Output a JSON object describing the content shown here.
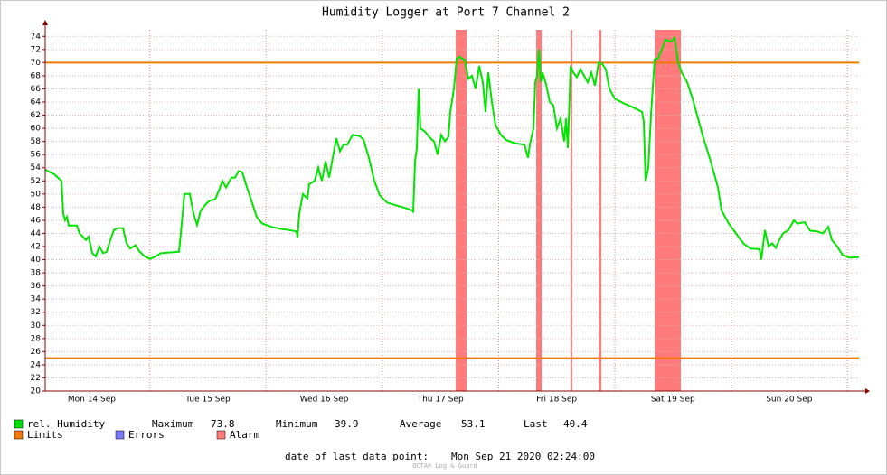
{
  "chart_data": {
    "type": "line",
    "title": "Humidity Logger at Port 7 Channel 2",
    "xlim": [
      0,
      168
    ],
    "ylim": [
      20,
      75
    ],
    "xticks": [
      {
        "value": 9.6,
        "label": "Mon 14 Sep"
      },
      {
        "value": 33.6,
        "label": "Tue 15 Sep"
      },
      {
        "value": 57.6,
        "label": "Wed 16 Sep"
      },
      {
        "value": 81.6,
        "label": "Thu 17 Sep"
      },
      {
        "value": 105.6,
        "label": "Fri 18 Sep"
      },
      {
        "value": 129.6,
        "label": "Sat 19 Sep"
      },
      {
        "value": 153.6,
        "label": "Sun 20 Sep"
      }
    ],
    "xgrid": [
      21.6,
      45.6,
      69.6,
      93.6,
      117.6,
      141.6,
      165.6
    ],
    "yticks": [
      20,
      22,
      24,
      26,
      28,
      30,
      32,
      34,
      36,
      38,
      40,
      42,
      44,
      46,
      48,
      50,
      52,
      54,
      56,
      58,
      60,
      62,
      64,
      66,
      68,
      70,
      72,
      74
    ],
    "grid": true,
    "x": [
      0,
      1.87,
      3.36,
      3.73,
      4.11,
      4.48,
      4.85,
      6.53,
      7.09,
      8.4,
      8.96,
      9.71,
      10.45,
      11.2,
      11.95,
      12.69,
      13.44,
      14.19,
      14.93,
      16.05,
      16.8,
      17.55,
      18.67,
      19.41,
      20.53,
      21.65,
      22.77,
      23.89,
      25.76,
      27.63,
      28,
      28.75,
      29.87,
      30.61,
      31.36,
      32.11,
      33.23,
      33.97,
      35.09,
      35.84,
      36.59,
      37.33,
      38.45,
      39.2,
      39.95,
      40.69,
      41.44,
      42.56,
      43.68,
      44.8,
      46.67,
      48.53,
      50.4,
      51.89,
      52.08,
      52.45,
      53.2,
      54.13,
      54.51,
      55.63,
      56.37,
      57.12,
      57.87,
      58.61,
      59.36,
      60.11,
      60.85,
      61.6,
      62.35,
      63.47,
      64.96,
      65.71,
      66.83,
      67.95,
      69.07,
      70.56,
      72.8,
      74.67,
      75.79,
      75.97,
      76.35,
      76.72,
      76.91,
      77.09,
      77.47,
      78.4,
      79.52,
      80.27,
      81.01,
      81.76,
      82.51,
      83.25,
      83.63,
      84.37,
      84.93,
      85.49,
      86.61,
      87.36,
      88.11,
      88.85,
      89.6,
      90.35,
      90.91,
      91.47,
      92.21,
      92.96,
      94.08,
      95.2,
      97.07,
      98.93,
      99.68,
      100.05,
      100.8,
      101.17,
      101.55,
      101.92,
      102.29,
      102.67,
      103.41,
      104.16,
      104.91,
      105.65,
      106.4,
      107.15,
      107.52,
      107.89,
      108.27,
      108.45,
      109.01,
      109.76,
      110.51,
      111.25,
      112,
      112.75,
      113.49,
      114.24,
      114.99,
      115.73,
      116.48,
      117.6,
      119.47,
      121.33,
      123.2,
      123.57,
      123.95,
      124.51,
      125.07,
      125.81,
      126.56,
      127.31,
      128.05,
      129.17,
      129.92,
      130.67,
      131.41,
      132.53,
      133.65,
      134.77,
      135.89,
      137.39,
      138.88,
      139.63,
      141.12,
      142.61,
      144.11,
      145.6,
      147.47,
      147.84,
      148.59,
      149.33,
      150.08,
      150.83,
      151.57,
      152.32,
      153.44,
      154.56,
      155.31,
      156.8,
      157.92,
      159.41,
      160.53,
      161.65,
      162.4,
      163.52,
      164.64,
      166.13,
      168
    ],
    "series": [
      {
        "name": "rel. Humidity",
        "color": "#00e400",
        "values": [
          53.7,
          53,
          52,
          47,
          46,
          46.5,
          45.2,
          45.2,
          44,
          43,
          43.5,
          41,
          40.5,
          42,
          41,
          41.2,
          43,
          44.5,
          44.8,
          44.8,
          42.5,
          41.7,
          42.2,
          41.3,
          40.5,
          40.1,
          40.5,
          41,
          41.1,
          41.2,
          44,
          50,
          50,
          47,
          45.3,
          47.5,
          48.5,
          49,
          49.2,
          50.5,
          52,
          51,
          52.5,
          52.5,
          53.5,
          53.3,
          51.5,
          49,
          46.5,
          45.5,
          45,
          44.7,
          44.5,
          44.3,
          43.3,
          47,
          50,
          49.3,
          51.5,
          52,
          54,
          52,
          55,
          52.5,
          55.5,
          58.5,
          56.5,
          57.5,
          57.5,
          59,
          58.8,
          58.3,
          55.5,
          52,
          49.8,
          48.7,
          48.2,
          47.8,
          47.5,
          47.2,
          55,
          57,
          61.5,
          66,
          60,
          59.5,
          58.5,
          58,
          56,
          59,
          58,
          58.7,
          62.5,
          66,
          70.6,
          70.9,
          70.4,
          67.5,
          68,
          66,
          69.5,
          67,
          62.5,
          68.5,
          64,
          60.5,
          59,
          58.2,
          57.7,
          57.5,
          55.5,
          57.5,
          60,
          67,
          68,
          72,
          67,
          68.5,
          66.7,
          64,
          63.5,
          60,
          61.5,
          58,
          61.5,
          57,
          65,
          69.5,
          68.5,
          67.8,
          69,
          68,
          67,
          68.5,
          66.5,
          70,
          69.8,
          69,
          66,
          64.5,
          63.8,
          63.2,
          62.5,
          61,
          52,
          54,
          62,
          70.5,
          70.7,
          72,
          73.5,
          73.2,
          73.8,
          70,
          68.5,
          67,
          64.5,
          61.5,
          58.5,
          55,
          51,
          47.5,
          45.5,
          44,
          42.5,
          41.7,
          41.6,
          40,
          44.5,
          42,
          42.5,
          41.8,
          43,
          44,
          44.5,
          46,
          45.5,
          45.7,
          44.4,
          44.3,
          44,
          45,
          43,
          42,
          40.7,
          40.3,
          40.4
        ]
      }
    ],
    "limits": [
      70,
      25
    ],
    "limit_color": "#f57900",
    "alarms": [
      [
        84.75,
        86.99
      ],
      [
        101.36,
        102.48
      ],
      [
        108.45,
        108.82
      ],
      [
        114.24,
        114.8
      ],
      [
        125.81,
        131.23
      ]
    ],
    "alarm_color": "#ff7b7b",
    "legend": [
      {
        "name": "Limits",
        "color": "#f57900"
      },
      {
        "name": "Errors",
        "color": "#7b7bff"
      },
      {
        "name": "Alarm",
        "color": "#ff7b7b"
      }
    ],
    "stats": [
      {
        "label": "Maximum",
        "value": 73.8
      },
      {
        "label": "Minimum",
        "value": 39.9
      },
      {
        "label": "Average",
        "value": 53.1
      },
      {
        "label": "Last",
        "value": 40.4
      }
    ],
    "footer": {
      "label": "date of last data point:",
      "value": "Mon Sep 21 2020 02:24:00"
    },
    "credit": "OCTA® Log & Guard"
  }
}
